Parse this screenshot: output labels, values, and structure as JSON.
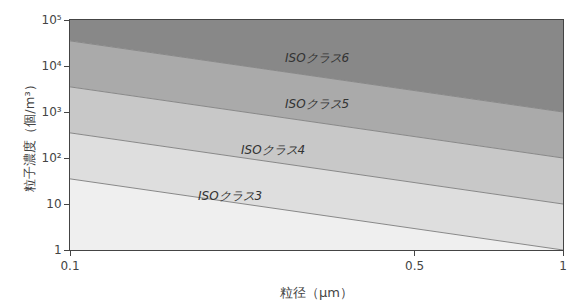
{
  "chart_data": {
    "type": "area",
    "log": true,
    "grid": false,
    "xlabel": "粒径（μm）",
    "ylabel": "粒子濃度（個/m³）",
    "x": [
      0.1,
      1.0
    ],
    "xlim": [
      0.1,
      1.0
    ],
    "ylim": [
      1,
      100000
    ],
    "xticks": [
      0.1,
      0.5,
      1
    ],
    "yticks": [
      1,
      10,
      {
        "value": 100,
        "label": "10²"
      },
      {
        "value": 1000,
        "label": "10³"
      },
      {
        "value": 10000,
        "label": "10⁴"
      },
      {
        "value": 100000,
        "label": "10⁵"
      }
    ],
    "series": [
      {
        "type": "line",
        "values": [
          1,
          1
        ],
        "line_style": "none"
      },
      {
        "type": "area",
        "values": [
          35.2,
          1.0
        ],
        "color": "#efefef"
      },
      {
        "type": "area",
        "values": [
          352,
          10.0
        ],
        "color": "#dedede"
      },
      {
        "type": "area",
        "values": [
          3520,
          100.0
        ],
        "color": "#c8c8c8"
      },
      {
        "type": "area",
        "values": [
          35200,
          1000.0
        ],
        "color": "#aaaaaa"
      },
      {
        "type": "area",
        "values": [
          100000,
          100000
        ],
        "color": "#888888"
      },
      {
        "type": "line",
        "values": [
          35.2,
          1.0
        ],
        "color": "#888888",
        "line_style": "solid"
      },
      {
        "type": "line",
        "values": [
          352,
          10.0
        ],
        "color": "#888888",
        "line_style": "solid"
      },
      {
        "type": "line",
        "values": [
          3520,
          100.0
        ],
        "color": "#888888",
        "line_style": "solid"
      },
      {
        "type": "line",
        "values": [
          35200,
          1000.0
        ],
        "color": "#888888",
        "line_style": "solid"
      }
    ],
    "annotations": [
      {
        "text": "ISOクラス6",
        "x": 0.27,
        "y": 15000,
        "color": "#333333"
      },
      {
        "text": "ISOクラス5",
        "x": 0.27,
        "y": 1500,
        "color": "#333333"
      },
      {
        "text": "ISOクラス4",
        "x": 0.22,
        "y": 150,
        "color": "#333333"
      },
      {
        "text": "ISOクラス3",
        "x": 0.18,
        "y": 15,
        "color": "#333333"
      }
    ]
  }
}
